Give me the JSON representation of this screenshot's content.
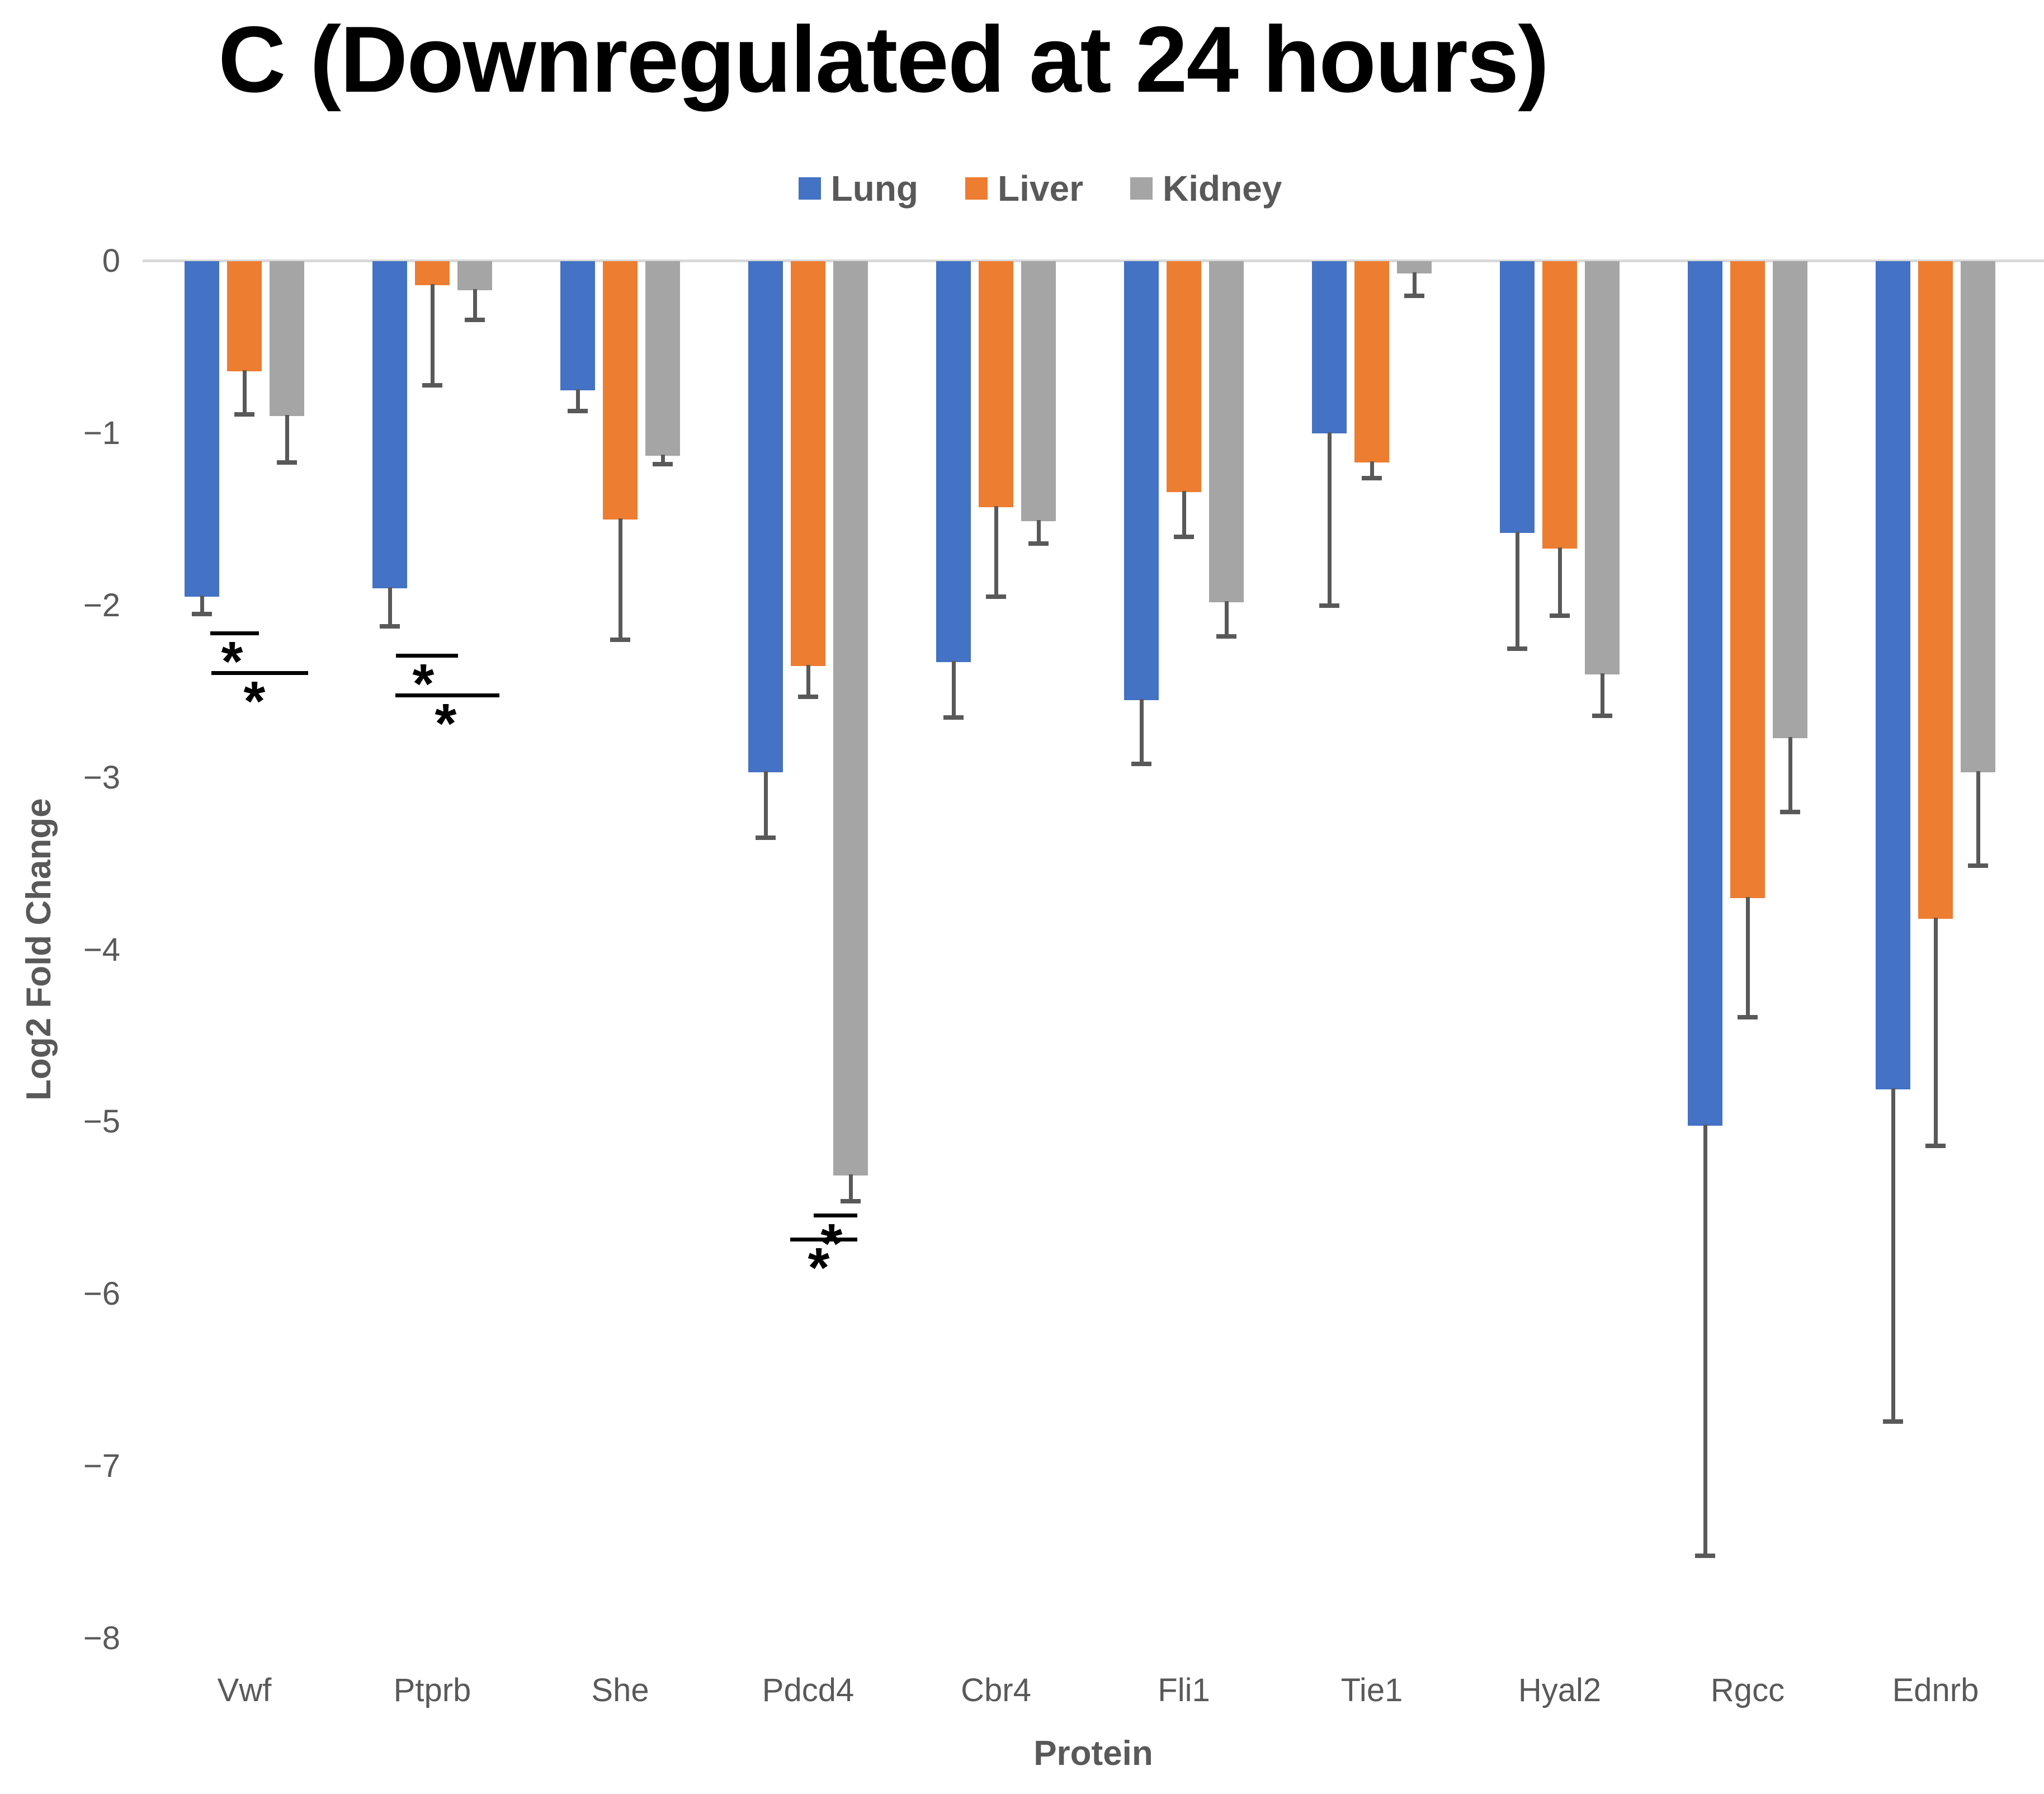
{
  "chart_data": {
    "type": "bar",
    "title": "C (Downregulated at 24 hours)",
    "xlabel": "Protein",
    "ylabel": "Log2 Fold Change",
    "ylim": [
      -8,
      0
    ],
    "ytick_labels": [
      "0",
      "−1",
      "−2",
      "−3",
      "−4",
      "−5",
      "−6",
      "−7",
      "−8"
    ],
    "grid": "zero-baseline-only",
    "legend_position": "top-center",
    "categories": [
      "Vwf",
      "Ptprb",
      "She",
      "Pdcd4",
      "Cbr4",
      "Fli1",
      "Tie1",
      "Hyal2",
      "Rgcc",
      "Ednrb"
    ],
    "series": [
      {
        "name": "Lung",
        "color": "#4472C4",
        "values": [
          -1.95,
          -1.9,
          -0.75,
          -2.97,
          -2.33,
          -2.55,
          -1.0,
          -1.58,
          -5.02,
          -4.81
        ],
        "errors": [
          0.1,
          0.22,
          0.12,
          0.38,
          0.32,
          0.37,
          1.0,
          0.67,
          2.5,
          1.93
        ]
      },
      {
        "name": "Liver",
        "color": "#ED7D31",
        "values": [
          -0.64,
          -0.14,
          -1.5,
          -2.35,
          -1.43,
          -1.34,
          -1.17,
          -1.67,
          -3.7,
          -3.82
        ],
        "errors": [
          0.25,
          0.58,
          0.7,
          0.18,
          0.52,
          0.26,
          0.09,
          0.39,
          0.69,
          1.32
        ]
      },
      {
        "name": "Kidney",
        "color": "#A5A5A5",
        "values": [
          -0.9,
          -0.17,
          -1.13,
          -5.31,
          -1.51,
          -1.98,
          -0.07,
          -2.4,
          -2.77,
          -2.97
        ],
        "errors": [
          0.27,
          0.17,
          0.05,
          0.15,
          0.13,
          0.2,
          0.13,
          0.24,
          0.43,
          0.54
        ]
      }
    ],
    "error_bar_color": "#595959",
    "star_symbol": "*",
    "significance": [
      {
        "category": "Vwf",
        "lines": [
          {
            "x1": -61,
            "x2": 26,
            "y": -2.15,
            "star_x": -22
          },
          {
            "x1": -59,
            "x2": 114,
            "y": -2.38,
            "star_x": 18
          }
        ]
      },
      {
        "category": "Ptprb",
        "lines": [
          {
            "x1": -65,
            "x2": 46,
            "y": -2.28,
            "star_x": -16
          },
          {
            "x1": -66,
            "x2": 120,
            "y": -2.51,
            "star_x": 24
          }
        ]
      },
      {
        "category": "Pdcd4",
        "lines": [
          {
            "x1": 10,
            "x2": 88,
            "y": -5.53,
            "star_x": 42
          },
          {
            "x1": -32,
            "x2": 88,
            "y": -5.67,
            "star_x": 19
          }
        ]
      }
    ]
  }
}
